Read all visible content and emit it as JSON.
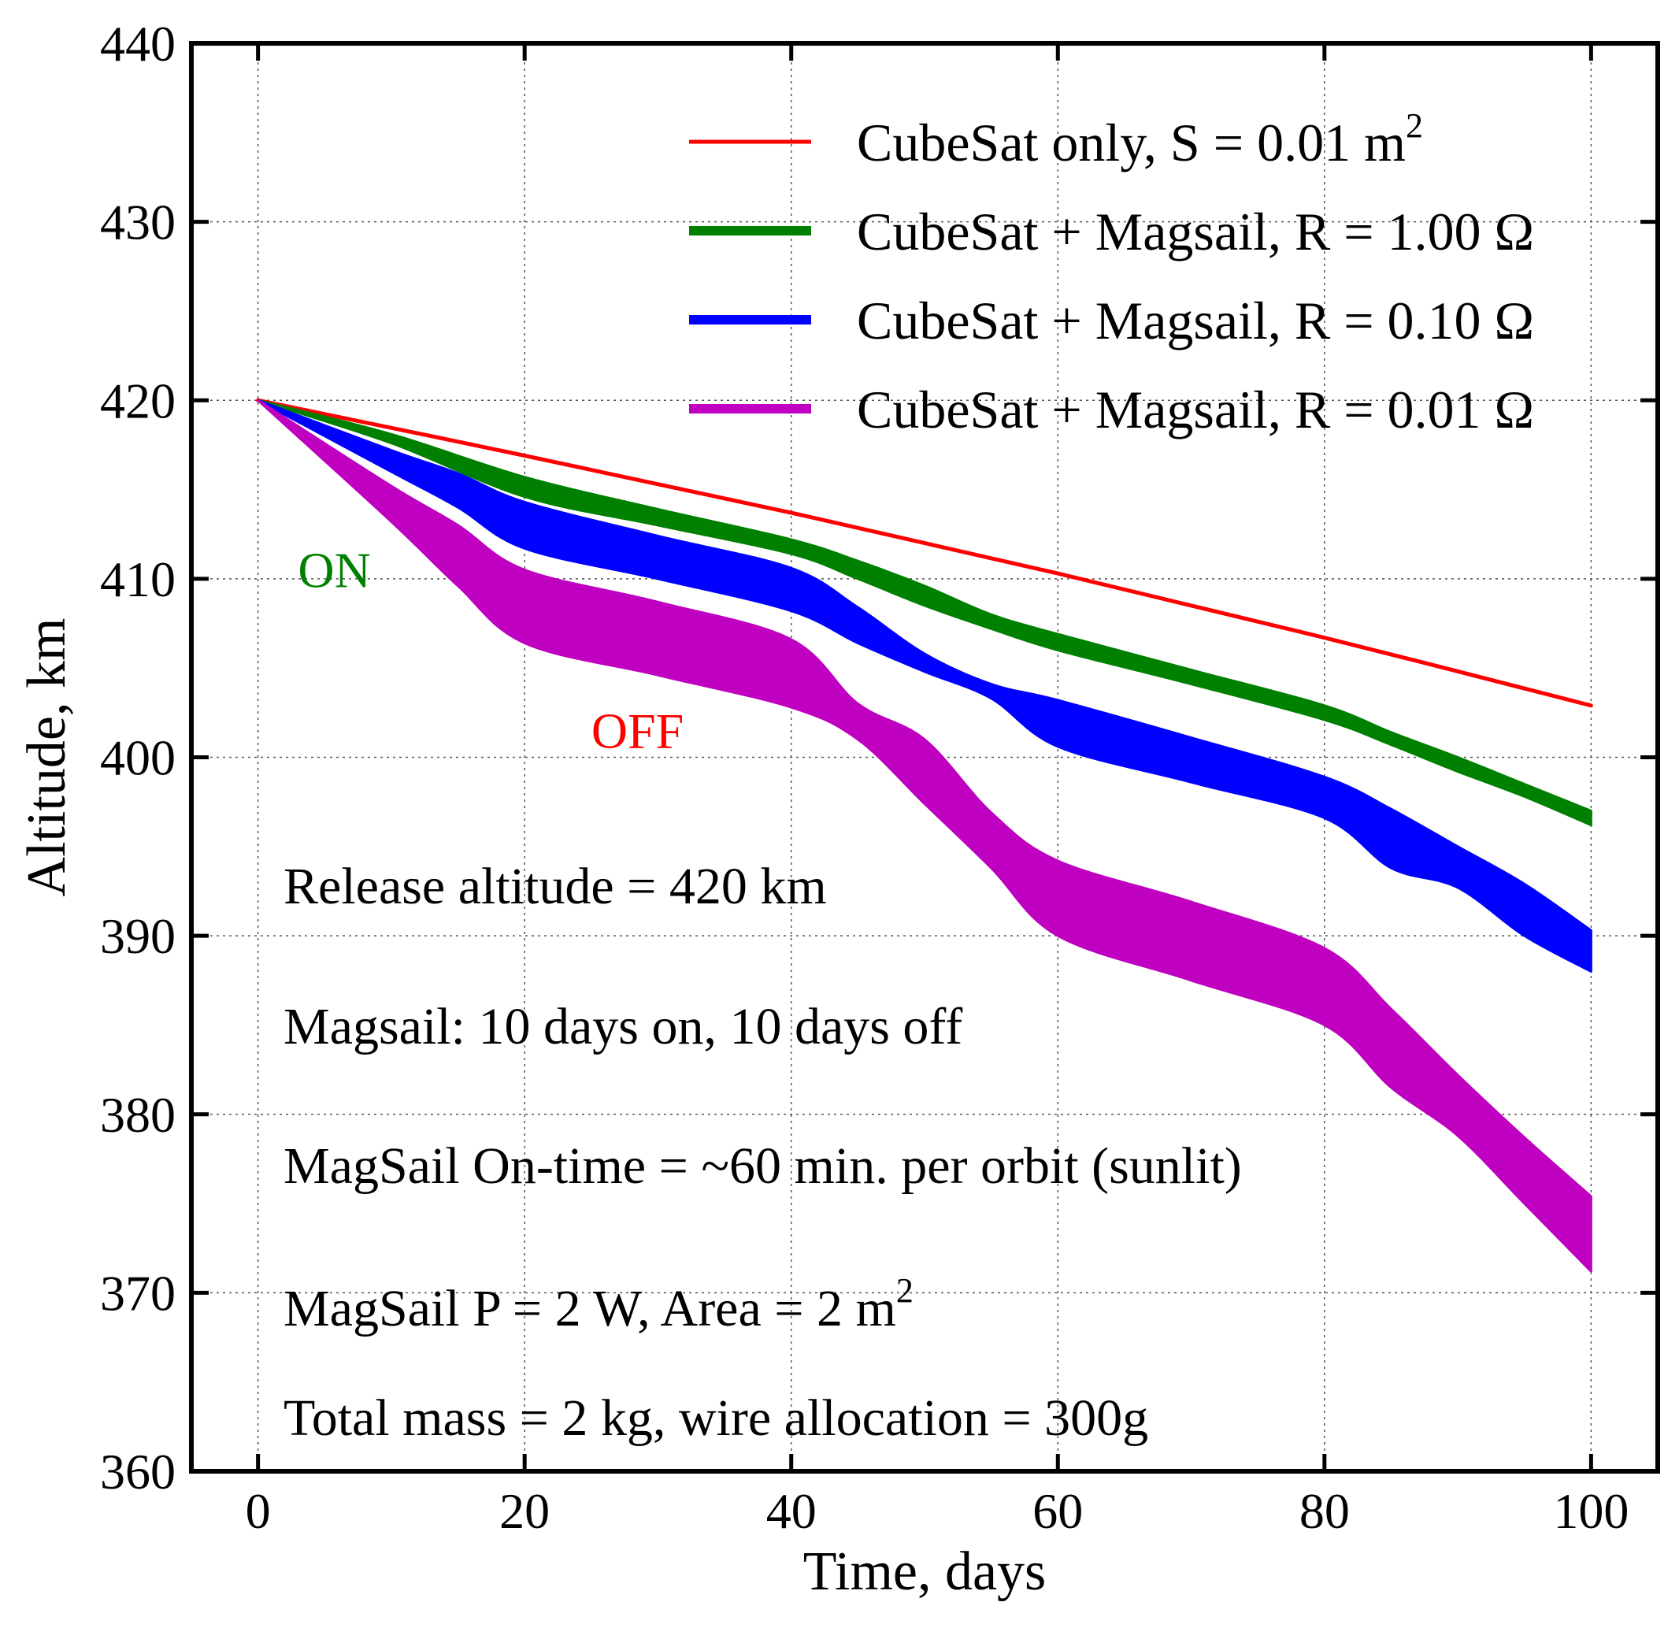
{
  "chart_data": {
    "type": "line",
    "title": "",
    "xlabel": "Time, days",
    "ylabel": "Altitude, km",
    "xlim": [
      -5,
      105
    ],
    "ylim": [
      360,
      440
    ],
    "xticks": [
      0,
      20,
      40,
      60,
      80,
      100
    ],
    "yticks": [
      360,
      370,
      380,
      390,
      400,
      410,
      420,
      430,
      440
    ],
    "grid": true,
    "legend_position": "top-right",
    "series": [
      {
        "name": "CubeSat only, S = 0.01 m²",
        "name_text": "CubeSat only, S = 0.01 m",
        "name_superscript": "2",
        "color": "#ff0000",
        "style": "line",
        "x": [
          0,
          20,
          40,
          60,
          80,
          100
        ],
        "y": [
          420,
          416.9,
          413.7,
          410.3,
          406.7,
          402.9
        ]
      },
      {
        "name": "CubeSat + Magsail, R = 1.00 Ω",
        "name_text": "CubeSat + Magsail, R = 1.00 Ω",
        "name_superscript": "",
        "color": "#008000",
        "style": "band",
        "x": [
          0,
          10,
          20,
          30,
          40,
          45,
          50,
          55,
          60,
          70,
          80,
          85,
          90,
          95,
          100
        ],
        "upper": [
          420,
          418.1,
          415.7,
          413.9,
          412.2,
          411.0,
          409.6,
          408.0,
          406.9,
          404.9,
          402.9,
          401.4,
          400.0,
          398.5,
          397.0
        ],
        "lower": [
          420,
          417.6,
          414.6,
          413.0,
          411.4,
          410.0,
          408.5,
          407.2,
          406.0,
          404.1,
          402.1,
          400.7,
          399.2,
          397.8,
          396.2
        ]
      },
      {
        "name": "CubeSat + Magsail, R = 0.10 Ω",
        "name_text": "CubeSat + Magsail, R = 0.10 Ω",
        "name_superscript": "",
        "color": "#0000ff",
        "style": "band",
        "x": [
          0,
          10,
          15,
          20,
          30,
          40,
          45,
          50,
          55,
          60,
          70,
          80,
          85,
          90,
          95,
          100
        ],
        "upper": [
          420,
          417.2,
          415.9,
          414.3,
          412.4,
          410.6,
          408.4,
          405.8,
          404.1,
          403.2,
          401.1,
          398.9,
          397.1,
          395.0,
          392.9,
          390.3
        ],
        "lower": [
          420,
          416.0,
          414.0,
          411.7,
          410.0,
          408.2,
          406.4,
          404.8,
          403.3,
          400.6,
          398.6,
          396.6,
          393.8,
          392.7,
          390.0,
          388.0
        ]
      },
      {
        "name": "CubeSat + Magsail, R = 0.01 Ω",
        "name_text": "CubeSat + Magsail, R = 0.01 Ω",
        "name_superscript": "",
        "color": "#c000c0",
        "style": "band",
        "x": [
          0,
          10,
          15,
          20,
          30,
          40,
          45,
          50,
          55,
          60,
          70,
          80,
          85,
          90,
          95,
          100
        ],
        "upper": [
          420,
          415.2,
          413.0,
          410.5,
          408.7,
          406.6,
          403.0,
          401.0,
          396.9,
          394.2,
          391.9,
          389.3,
          385.9,
          382.2,
          378.7,
          375.4
        ],
        "lower": [
          420,
          413.2,
          409.6,
          406.4,
          404.6,
          402.8,
          401.0,
          397.4,
          393.8,
          390.0,
          387.5,
          385.0,
          381.5,
          378.8,
          375.0,
          371.2
        ]
      }
    ],
    "annotations": [
      {
        "text": "ON",
        "color": "#008000",
        "x": 3,
        "y": 410.5
      },
      {
        "text": "OFF",
        "color": "#ff0000",
        "x": 25,
        "y": 401.5
      }
    ],
    "notes": [
      {
        "text": "Release altitude = 420 km",
        "superscript": ""
      },
      {
        "text": "Magsail: 10 days on, 10 days off",
        "superscript": ""
      },
      {
        "text": "MagSail On-time = ~60 min. per orbit (sunlit)",
        "superscript": ""
      },
      {
        "text": "MagSail P = 2 W, Area = 2 m",
        "superscript": "2"
      },
      {
        "text": "Total mass = 2 kg, wire allocation = 300g",
        "superscript": ""
      }
    ]
  }
}
